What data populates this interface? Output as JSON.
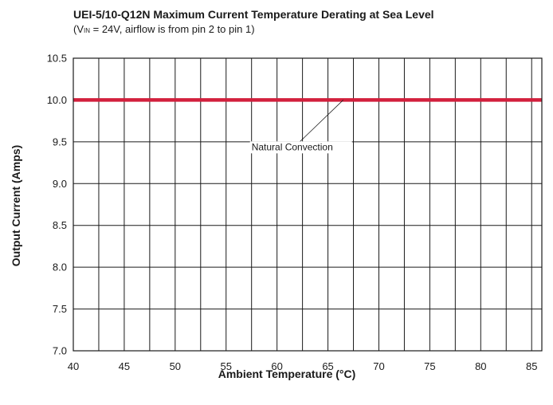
{
  "chart_data": {
    "type": "line",
    "title": "UEI-5/10-Q12N Maximum Current Temperature Derating at Sea Level",
    "subtitle": {
      "prefix": "(V",
      "subscript": "IN",
      "suffix": " = 24V, airflow is from pin 2 to pin 1)"
    },
    "xlabel": "Ambient Temperature (°C)",
    "ylabel": "Output Current (Amps)",
    "xlim": [
      40,
      86
    ],
    "ylim": [
      7.0,
      10.5
    ],
    "x_ticks": [
      40,
      45,
      50,
      55,
      60,
      65,
      70,
      75,
      80,
      85
    ],
    "x_tick_labels": [
      "40",
      "45",
      "50",
      "55",
      "60",
      "65",
      "70",
      "75",
      "80",
      "85"
    ],
    "y_ticks": [
      7.0,
      7.5,
      8.0,
      8.5,
      9.0,
      9.5,
      10.0,
      10.5
    ],
    "y_tick_labels": [
      "7.0",
      "7.5",
      "8.0",
      "8.5",
      "9.0",
      "9.5",
      "10.0",
      "10.5"
    ],
    "grid": true,
    "series": [
      {
        "name": "Natural Convection",
        "x": [
          40,
          86
        ],
        "y": [
          10.0,
          10.0
        ],
        "color": "#d21f3c"
      }
    ],
    "annotations": [
      {
        "text": "Natural Convection",
        "point_x": 66.5,
        "point_y": 10.0,
        "text_x": 57.5,
        "text_y": 9.4
      }
    ]
  }
}
